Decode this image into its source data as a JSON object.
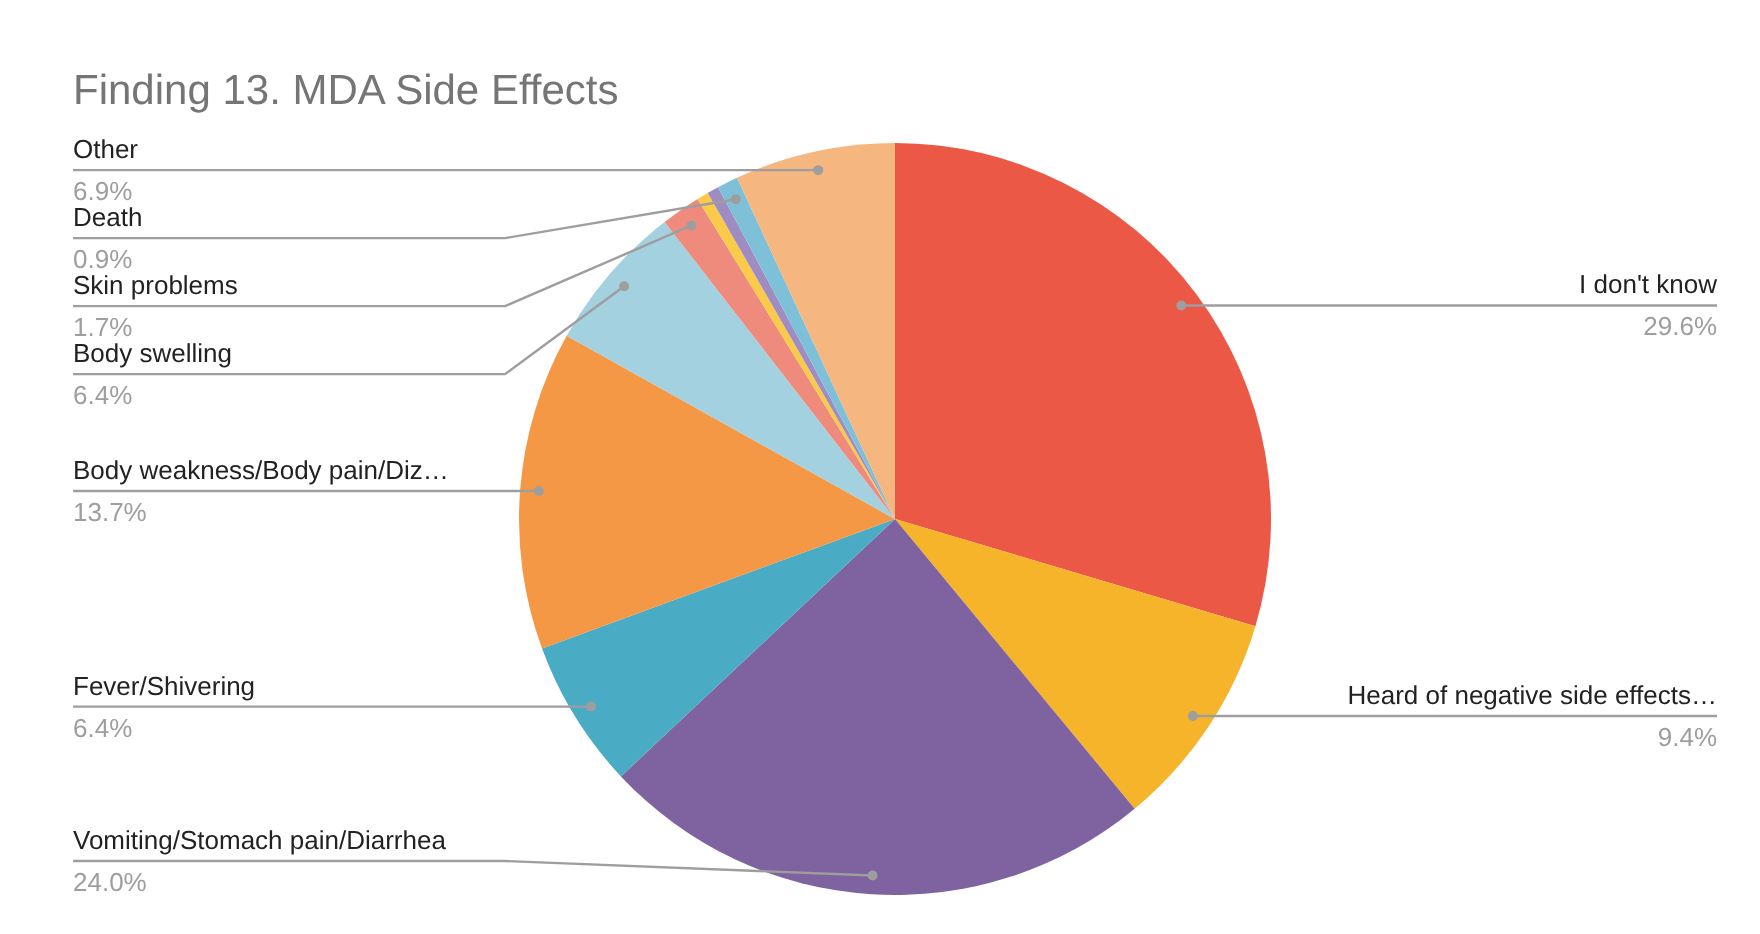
{
  "chart_data": {
    "type": "pie",
    "title": "Finding 13. MDA Side Effects",
    "categories": [
      "I don't know",
      "Heard of negative side effects…",
      "Vomiting/Stomach pain/Diarrhea",
      "Fever/Shivering",
      "Body weakness/Body pain/Diz…",
      "Body swelling",
      "Skin problems",
      null,
      null,
      "Death",
      "Other"
    ],
    "values": [
      29.6,
      9.4,
      24.0,
      6.4,
      13.7,
      6.4,
      1.7,
      0.5,
      0.5,
      0.9,
      6.9
    ],
    "colors": [
      "#ec5846",
      "#f6b42b",
      "#7e63a0",
      "#4aabc5",
      "#f59845",
      "#a3d1df",
      "#ef8b7d",
      "#f9cb48",
      "#9f8cc3",
      "#7ec0d8",
      "#f6b67f"
    ],
    "value_labels": [
      "29.6%",
      "9.4%",
      "24.0%",
      "6.4%",
      "13.7%",
      "6.4%",
      "1.7%",
      null,
      null,
      "0.9%",
      "6.9%"
    ]
  }
}
